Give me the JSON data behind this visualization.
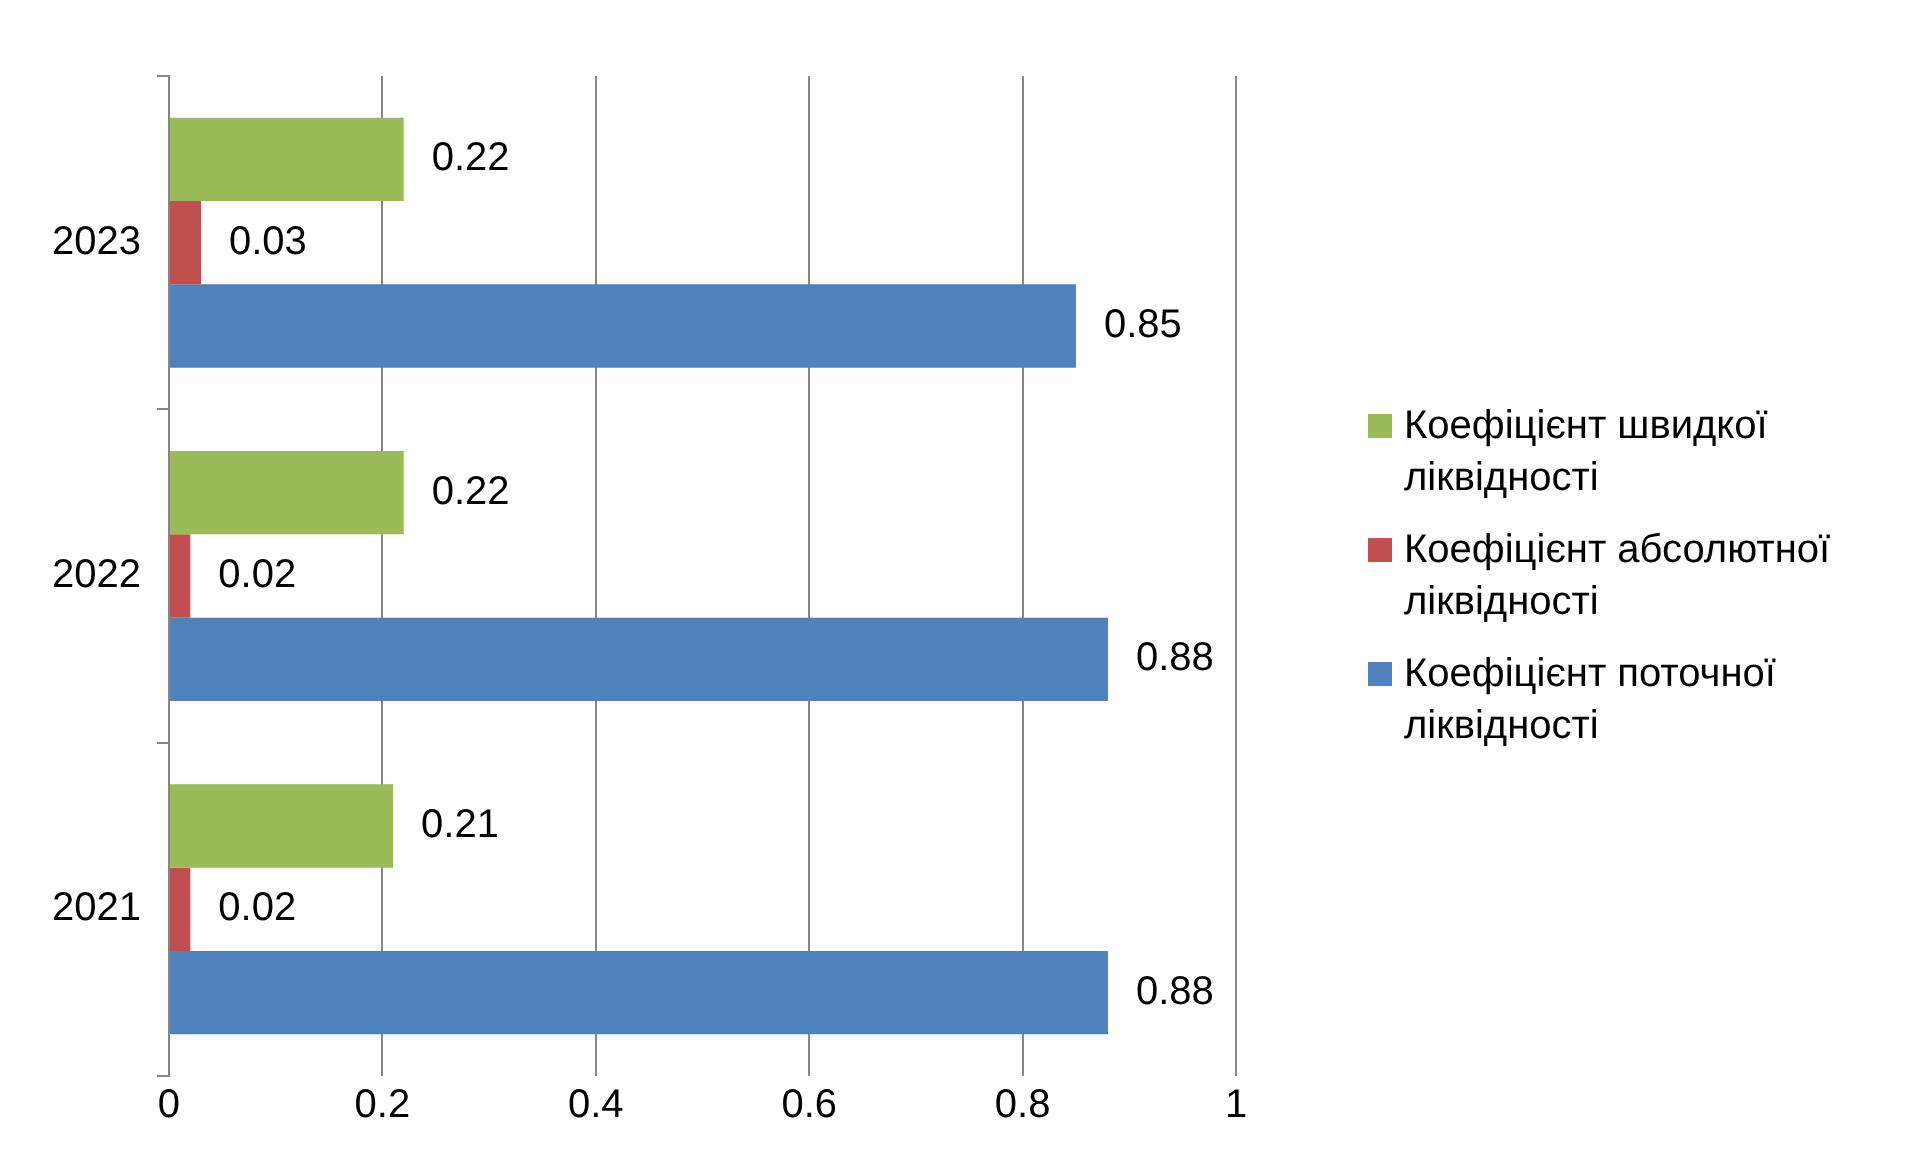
{
  "chart_data": {
    "type": "bar",
    "orientation": "horizontal",
    "categories": [
      "2023",
      "2022",
      "2021"
    ],
    "series": [
      {
        "name": "Коефіцієнт швидкої ліквідності",
        "color": "#9bbb59",
        "values": [
          0.22,
          0.22,
          0.21
        ]
      },
      {
        "name": "Коефіцієнт абсолютної ліквідності",
        "color": "#c0504d",
        "values": [
          0.03,
          0.02,
          0.02
        ]
      },
      {
        "name": "Коефіцієнт поточної ліквідності",
        "color": "#4f81bd",
        "values": [
          0.85,
          0.88,
          0.88
        ]
      }
    ],
    "xlim": [
      0,
      1
    ],
    "xticks": [
      0,
      0.2,
      0.4,
      0.6,
      0.8,
      1
    ],
    "grid": "x",
    "legend": "right",
    "data_labels": true
  }
}
